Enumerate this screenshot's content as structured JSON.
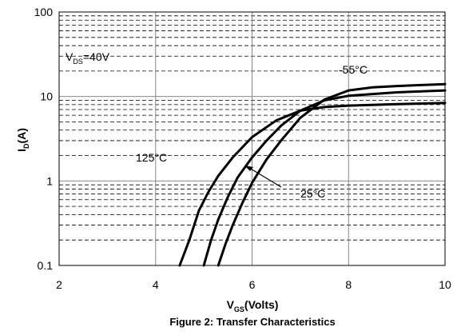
{
  "chart_data": {
    "type": "line",
    "title": "Figure 2: Transfer Characteristics",
    "xlabel": {
      "main": "V",
      "sub": "GS",
      "rest": "(Volts)"
    },
    "ylabel": {
      "main": "I",
      "sub": "D",
      "rest": "(A)"
    },
    "x_range": [
      2,
      10
    ],
    "y_range": [
      0.1,
      100
    ],
    "y_scale": "log",
    "x_ticks": [
      {
        "value": 2,
        "label": "2"
      },
      {
        "value": 4,
        "label": "4"
      },
      {
        "value": 6,
        "label": "6"
      },
      {
        "value": 8,
        "label": "8"
      },
      {
        "value": 10,
        "label": "10"
      }
    ],
    "y_ticks": [
      {
        "value": 0.1,
        "label": "0.1"
      },
      {
        "value": 1,
        "label": "1"
      },
      {
        "value": 10,
        "label": "10"
      },
      {
        "value": 100,
        "label": "100"
      }
    ],
    "grid": true,
    "annotations": {
      "vds": {
        "main": "V",
        "sub": "DS",
        "rest": "=40V"
      },
      "t125": "125°C",
      "t25": "25°C",
      "tm55": "-55°C"
    },
    "series": [
      {
        "name": "125°C",
        "x": [
          4.5,
          4.7,
          4.9,
          5.1,
          5.3,
          5.6,
          6.0,
          6.5,
          7.0,
          7.5,
          8.0,
          9.0,
          10.0
        ],
        "y": [
          0.1,
          0.2,
          0.45,
          0.75,
          1.15,
          1.9,
          3.3,
          5.2,
          6.8,
          7.5,
          7.8,
          8.1,
          8.4
        ]
      },
      {
        "name": "25°C",
        "x": [
          5.0,
          5.15,
          5.3,
          5.5,
          5.7,
          6.0,
          6.3,
          6.6,
          7.0,
          7.5,
          8.0,
          9.0,
          10.0
        ],
        "y": [
          0.1,
          0.2,
          0.35,
          0.65,
          1.1,
          1.9,
          3.0,
          4.5,
          6.8,
          9.0,
          10.2,
          11.2,
          11.8
        ]
      },
      {
        "name": "-55°C",
        "x": [
          5.3,
          5.45,
          5.6,
          5.8,
          6.0,
          6.3,
          6.6,
          7.0,
          7.5,
          8.0,
          8.5,
          9.0,
          10.0
        ],
        "y": [
          0.1,
          0.18,
          0.3,
          0.55,
          0.95,
          1.8,
          3.0,
          5.6,
          9.2,
          11.8,
          12.8,
          13.3,
          14.0
        ]
      }
    ]
  }
}
